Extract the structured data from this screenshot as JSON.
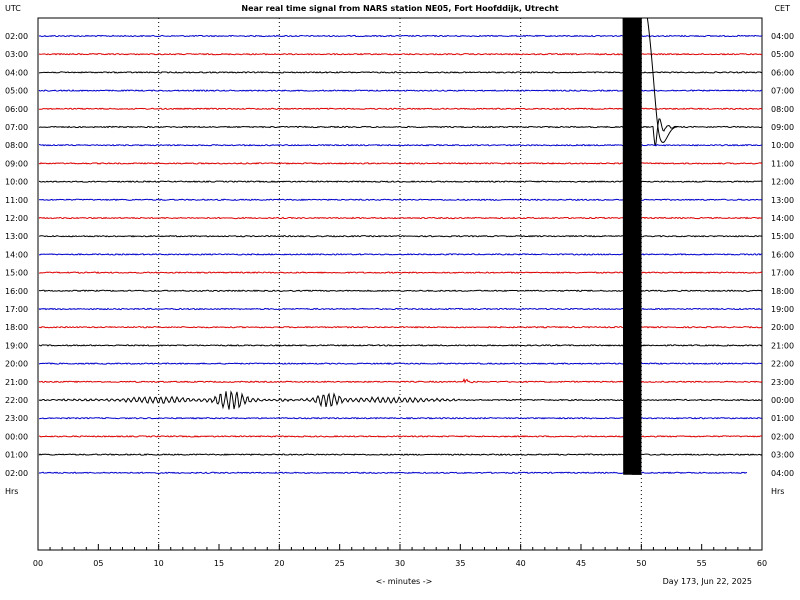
{
  "chart_data": {
    "type": "line",
    "title": "Near real time signal from NARS station NE05, Fort Hoofddijk, Utrecht",
    "left_axis_title": "UTC",
    "right_axis_title": "CET",
    "left_axis_footer": "Hrs",
    "right_axis_footer": "Hrs",
    "xlabel": "<- minutes ->",
    "xlim": [
      0,
      60
    ],
    "x_ticks": [
      "00",
      "05",
      "10",
      "15",
      "20",
      "25",
      "30",
      "35",
      "40",
      "45",
      "50",
      "55",
      "60"
    ],
    "vertical_gridlines_at_minutes": [
      10,
      20,
      30,
      40,
      50
    ],
    "date_label": "Day 173, Jun 22, 2025",
    "rows": [
      {
        "utc": "02:00",
        "cet": "04:00",
        "color": "#0000cc"
      },
      {
        "utc": "03:00",
        "cet": "05:00",
        "color": "#dd0000"
      },
      {
        "utc": "04:00",
        "cet": "06:00",
        "color": "#000000"
      },
      {
        "utc": "05:00",
        "cet": "07:00",
        "color": "#0000cc"
      },
      {
        "utc": "06:00",
        "cet": "08:00",
        "color": "#dd0000"
      },
      {
        "utc": "07:00",
        "cet": "09:00",
        "color": "#000000"
      },
      {
        "utc": "08:00",
        "cet": "10:00",
        "color": "#0000cc"
      },
      {
        "utc": "09:00",
        "cet": "11:00",
        "color": "#dd0000"
      },
      {
        "utc": "10:00",
        "cet": "12:00",
        "color": "#000000"
      },
      {
        "utc": "11:00",
        "cet": "13:00",
        "color": "#0000cc"
      },
      {
        "utc": "12:00",
        "cet": "14:00",
        "color": "#dd0000"
      },
      {
        "utc": "13:00",
        "cet": "15:00",
        "color": "#000000"
      },
      {
        "utc": "14:00",
        "cet": "16:00",
        "color": "#0000cc"
      },
      {
        "utc": "15:00",
        "cet": "17:00",
        "color": "#dd0000"
      },
      {
        "utc": "16:00",
        "cet": "18:00",
        "color": "#000000"
      },
      {
        "utc": "17:00",
        "cet": "19:00",
        "color": "#0000cc"
      },
      {
        "utc": "18:00",
        "cet": "20:00",
        "color": "#dd0000"
      },
      {
        "utc": "19:00",
        "cet": "21:00",
        "color": "#000000"
      },
      {
        "utc": "20:00",
        "cet": "22:00",
        "color": "#0000cc"
      },
      {
        "utc": "21:00",
        "cet": "23:00",
        "color": "#dd0000"
      },
      {
        "utc": "22:00",
        "cet": "00:00",
        "color": "#000000"
      },
      {
        "utc": "23:00",
        "cet": "01:00",
        "color": "#0000cc"
      },
      {
        "utc": "00:00",
        "cet": "02:00",
        "color": "#dd0000"
      },
      {
        "utc": "01:00",
        "cet": "03:00",
        "color": "#000000"
      },
      {
        "utc": "02:00",
        "cet": "04:00",
        "color": "#0000cc",
        "end_minute": 58.8
      }
    ],
    "events": [
      {
        "type": "major_earthquake",
        "row_index": 5,
        "start_minute": 48.5,
        "peak_minute": 49.5,
        "end_minute": 51.5
      },
      {
        "type": "teleseismic_wavetrain",
        "row_index": 20,
        "start_minute": 2,
        "peak_minute": 16,
        "end_minute": 35
      },
      {
        "type": "local_spike",
        "row_index": 19,
        "start_minute": 35.3,
        "end_minute": 36
      }
    ]
  }
}
